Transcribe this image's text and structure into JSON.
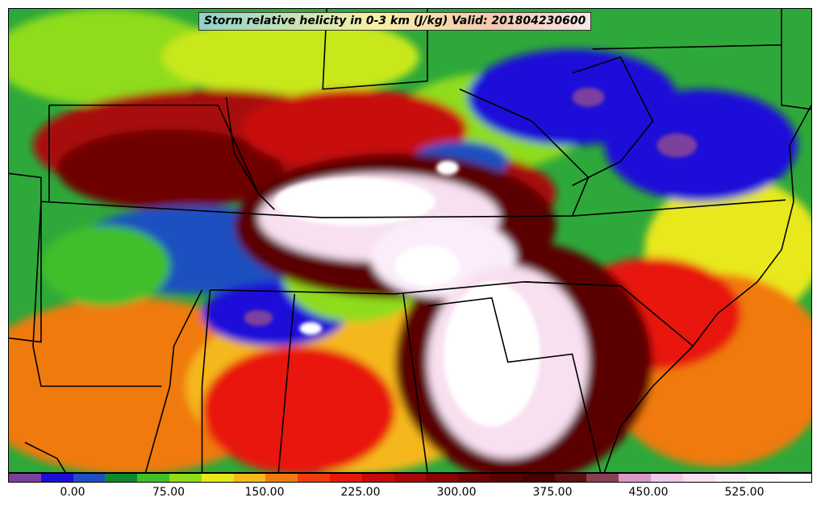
{
  "title": "Storm relative helicity in 0-3 km (J/kg) Valid: 201804230600",
  "colorbar": {
    "colors": [
      "#7b3f9e",
      "#1a0fd8",
      "#1f4fc0",
      "#0f8a2a",
      "#3fbf2a",
      "#8fdc1a",
      "#e8e81a",
      "#f5b81a",
      "#f07a10",
      "#f03a10",
      "#e8180a",
      "#c80a0a",
      "#a80808",
      "#880404",
      "#6e0202",
      "#5a0202",
      "#4a0000",
      "#5c1010",
      "#8a4050",
      "#d898c8",
      "#f0c8e8",
      "#f8e0f0",
      "#fbeefa",
      "#fef8fe",
      "#ffffff"
    ],
    "tick_labels": [
      "0.00",
      "75.00",
      "150.00",
      "225.00",
      "300.00",
      "375.00",
      "450.00",
      "525.00"
    ]
  }
}
